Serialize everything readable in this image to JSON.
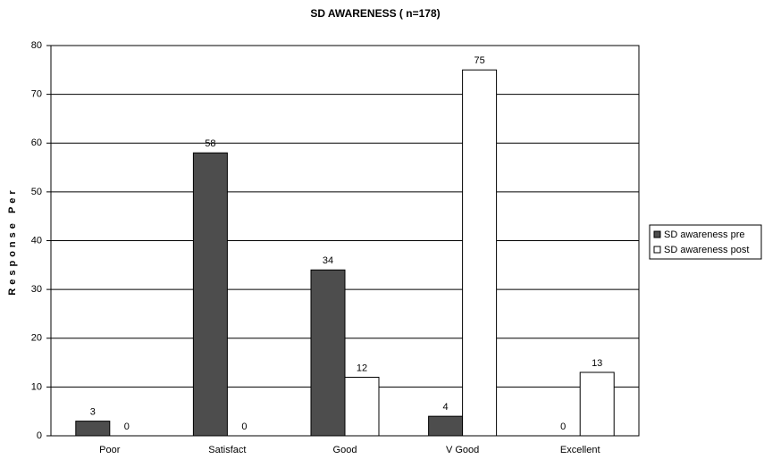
{
  "chart_data": {
    "type": "bar",
    "title": "SD AWARENESS ( n=178)",
    "y_label": "Response Per",
    "categories": [
      "Poor",
      "Satisfact",
      "Good",
      "V Good",
      "Excellent"
    ],
    "series": [
      {
        "name": "SD awareness pre",
        "color": "#4d4d4d",
        "values": [
          3,
          58,
          34,
          4,
          0
        ]
      },
      {
        "name": "SD awareness post",
        "color": "#ffffff",
        "values": [
          0,
          0,
          12,
          75,
          13
        ]
      }
    ],
    "ylim": [
      0,
      80
    ],
    "yticks": [
      0,
      10,
      20,
      30,
      40,
      50,
      60,
      70,
      80
    ],
    "grid": true,
    "legend": "right"
  }
}
